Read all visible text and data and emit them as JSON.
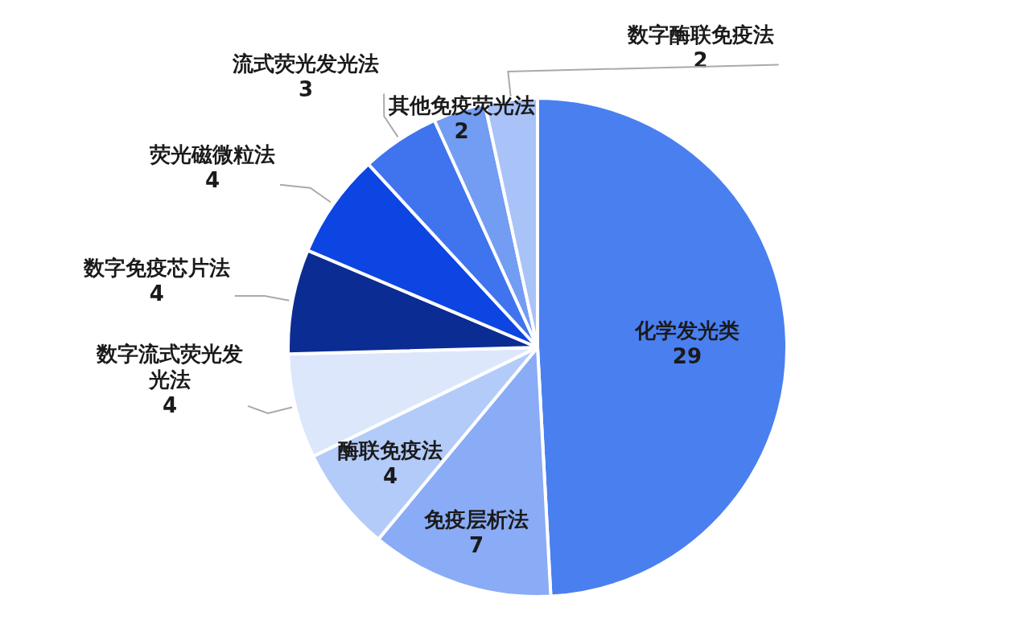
{
  "chart_data": {
    "type": "pie",
    "data_labels": true,
    "categories": [
      "化学发光类",
      "免疫层析法",
      "酶联免疫法",
      "数字流式荧光发光法",
      "数字免疫芯片法",
      "荧光磁微粒法",
      "流式荧光发光法",
      "其他免疫荧光法",
      "数字酶联免疫法"
    ],
    "values": [
      29,
      7,
      4,
      4,
      4,
      4,
      3,
      2,
      2
    ],
    "colors": [
      "#4a7ff0",
      "#8aabf6",
      "#b3cbf9",
      "#dde7fc",
      "#0b2c93",
      "#0d45e3",
      "#3f74ee",
      "#739cf3",
      "#a9c3f8"
    ]
  }
}
